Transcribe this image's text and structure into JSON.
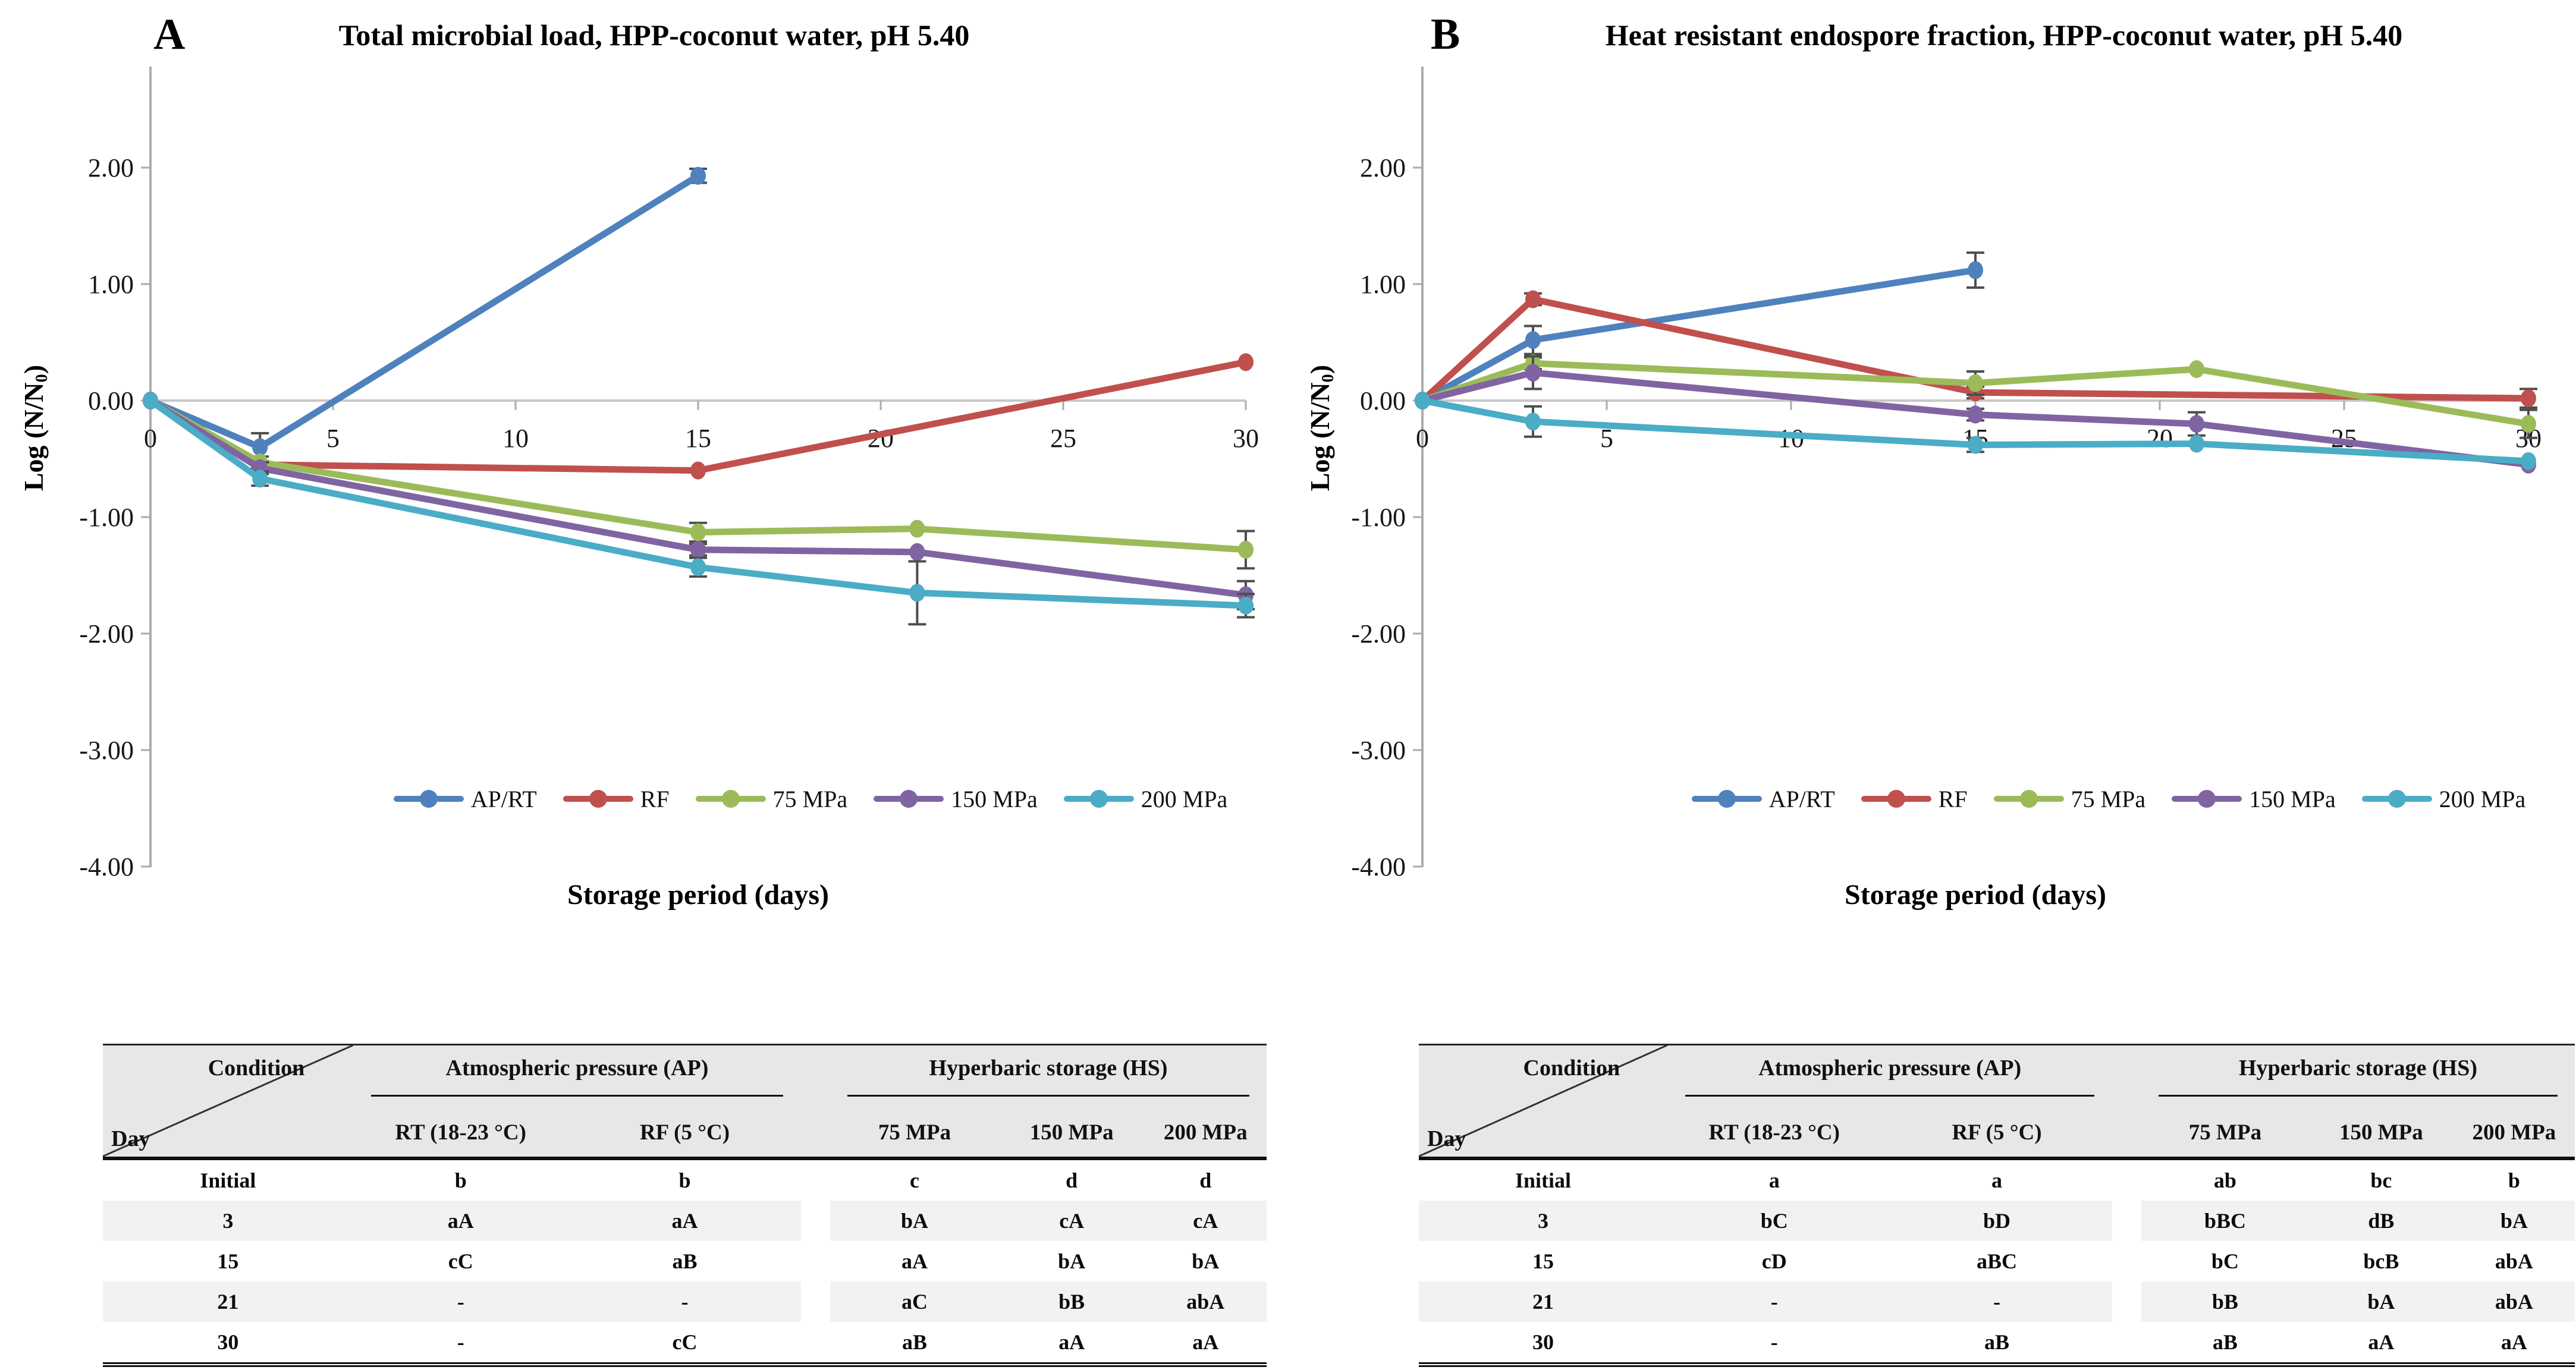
{
  "figure_colors": {
    "ap_rt_blue": "#4F81BD",
    "rf_red": "#C0504D",
    "mpa75_green": "#9BBB59",
    "mpa150_purple": "#8064A2",
    "mpa200_cyan": "#4BACC6",
    "axis_gray": "#ABABAB",
    "zero_line_gray": "#C8C8C8",
    "error_bar_gray": "#4D4D4D",
    "table_header_bg": "#e7e7e7",
    "table_stripe_bg": "#f2f2f2"
  },
  "chart_data": [
    {
      "type": "line",
      "panel_letter": "A",
      "title": "Total microbial load, HPP-coconut water, pH 5.40",
      "xlabel": "Storage period (days)",
      "ylabel": "Log (N/N0)",
      "ylabel_parts": {
        "prefix": "Log (N/N",
        "sub": "0",
        "suffix": ")"
      },
      "xlim": [
        0,
        30
      ],
      "ylim": [
        -4.0,
        2.9
      ],
      "x_ticks": [
        "0",
        "5",
        "10",
        "15",
        "20",
        "25",
        "30"
      ],
      "x_tick_values": [
        0,
        5,
        10,
        15,
        20,
        25,
        30
      ],
      "y_ticks": [
        "2.00",
        "1.00",
        "0.00",
        "-1.00",
        "-2.00",
        "-3.00",
        "-4.00"
      ],
      "y_tick_values": [
        2,
        1,
        0,
        -1,
        -2,
        -3,
        -4
      ],
      "grid": false,
      "legend_position": "bottom",
      "series": [
        {
          "name": "AP/RT",
          "color": "#4F81BD",
          "x": [
            0,
            3,
            15
          ],
          "y": [
            0,
            -0.4,
            1.93
          ],
          "err": [
            0,
            0.12,
            0.06
          ]
        },
        {
          "name": "RF",
          "color": "#C0504D",
          "x": [
            0,
            3,
            15,
            30
          ],
          "y": [
            0,
            -0.55,
            -0.6,
            0.33
          ],
          "err": [
            0,
            0,
            0,
            0
          ]
        },
        {
          "name": "75 MPa",
          "color": "#9BBB59",
          "x": [
            0,
            3,
            15,
            21,
            30
          ],
          "y": [
            0,
            -0.53,
            -1.13,
            -1.1,
            -1.28
          ],
          "err": [
            0,
            0.05,
            0.08,
            0,
            0.16
          ]
        },
        {
          "name": "150 MPa",
          "color": "#8064A2",
          "x": [
            0,
            3,
            15,
            21,
            30
          ],
          "y": [
            0,
            -0.58,
            -1.28,
            -1.3,
            -1.67
          ],
          "err": [
            0,
            0.05,
            0.05,
            0,
            0.12
          ]
        },
        {
          "name": "200 MPa",
          "color": "#4BACC6",
          "x": [
            0,
            3,
            15,
            21,
            30
          ],
          "y": [
            0,
            -0.67,
            -1.43,
            -1.65,
            -1.76
          ],
          "err": [
            0,
            0.06,
            0.08,
            0.27,
            0.1
          ]
        }
      ]
    },
    {
      "type": "line",
      "panel_letter": "B",
      "title": "Heat resistant endospore fraction, HPP-coconut water, pH 5.40",
      "xlabel": "Storage period (days)",
      "ylabel": "Log (N/N0)",
      "ylabel_parts": {
        "prefix": "Log (N/N",
        "sub": "0",
        "suffix": ")"
      },
      "xlim": [
        0,
        30
      ],
      "ylim": [
        -4.0,
        2.9
      ],
      "x_ticks": [
        "0",
        "5",
        "10",
        "15",
        "20",
        "25",
        "30"
      ],
      "x_tick_values": [
        0,
        5,
        10,
        15,
        20,
        25,
        30
      ],
      "y_ticks": [
        "2.00",
        "1.00",
        "0.00",
        "-1.00",
        "-2.00",
        "-3.00",
        "-4.00"
      ],
      "y_tick_values": [
        2,
        1,
        0,
        -1,
        -2,
        -3,
        -4
      ],
      "grid": false,
      "legend_position": "bottom",
      "series": [
        {
          "name": "AP/RT",
          "color": "#4F81BD",
          "x": [
            0,
            3,
            15
          ],
          "y": [
            0,
            0.52,
            1.12
          ],
          "err": [
            0,
            0.12,
            0.15
          ]
        },
        {
          "name": "RF",
          "color": "#C0504D",
          "x": [
            0,
            3,
            15,
            30
          ],
          "y": [
            0,
            0.87,
            0.07,
            0.02
          ],
          "err": [
            0,
            0.05,
            0.05,
            0.08
          ]
        },
        {
          "name": "75 MPa",
          "color": "#9BBB59",
          "x": [
            0,
            3,
            15,
            21,
            30
          ],
          "y": [
            0,
            0.32,
            0.15,
            0.27,
            -0.2
          ],
          "err": [
            0,
            0.05,
            0.1,
            0,
            0.12
          ]
        },
        {
          "name": "150 MPa",
          "color": "#8064A2",
          "x": [
            0,
            3,
            15,
            21,
            30
          ],
          "y": [
            0,
            0.24,
            -0.12,
            -0.2,
            -0.55
          ],
          "err": [
            0,
            0.14,
            0.05,
            0.1,
            0
          ]
        },
        {
          "name": "200 MPa",
          "color": "#4BACC6",
          "x": [
            0,
            3,
            15,
            21,
            30
          ],
          "y": [
            0,
            -0.18,
            -0.38,
            -0.37,
            -0.52
          ],
          "err": [
            0,
            0.13,
            0.06,
            0,
            0
          ]
        }
      ]
    }
  ],
  "tables": [
    {
      "corner": {
        "top": "Condition",
        "bottom": "Day"
      },
      "groups": [
        {
          "label": "Atmospheric pressure (AP)",
          "columns": 2
        },
        {
          "label": "Hyperbaric storage (HS)",
          "columns": 3
        }
      ],
      "columns": [
        "RT (18-23 °C)",
        "RF (5 °C)",
        "75 MPa",
        "150 MPa",
        "200 MPa"
      ],
      "rows": [
        {
          "day": "Initial",
          "values": [
            "b",
            "b",
            "c",
            "d",
            "d"
          ],
          "striped": false
        },
        {
          "day": "3",
          "values": [
            "aA",
            "aA",
            "bA",
            "cA",
            "cA"
          ],
          "striped": true
        },
        {
          "day": "15",
          "values": [
            "cC",
            "aB",
            "aA",
            "bA",
            "bA"
          ],
          "striped": false
        },
        {
          "day": "21",
          "values": [
            "-",
            "-",
            "aC",
            "bB",
            "abA"
          ],
          "striped": true
        },
        {
          "day": "30",
          "values": [
            "-",
            "cC",
            "aB",
            "aA",
            "aA"
          ],
          "striped": false
        }
      ]
    },
    {
      "corner": {
        "top": "Condition",
        "bottom": "Day"
      },
      "groups": [
        {
          "label": "Atmospheric pressure (AP)",
          "columns": 2
        },
        {
          "label": "Hyperbaric storage (HS)",
          "columns": 3
        }
      ],
      "columns": [
        "RT (18-23 °C)",
        "RF (5 °C)",
        "75 MPa",
        "150 MPa",
        "200 MPa"
      ],
      "rows": [
        {
          "day": "Initial",
          "values": [
            "a",
            "a",
            "ab",
            "bc",
            "b"
          ],
          "striped": false
        },
        {
          "day": "3",
          "values": [
            "bC",
            "bD",
            "bBC",
            "dB",
            "bA"
          ],
          "striped": true
        },
        {
          "day": "15",
          "values": [
            "cD",
            "aBC",
            "bC",
            "bcB",
            "abA"
          ],
          "striped": false
        },
        {
          "day": "21",
          "values": [
            "-",
            "-",
            "bB",
            "bA",
            "abA"
          ],
          "striped": true
        },
        {
          "day": "30",
          "values": [
            "-",
            "aB",
            "aB",
            "aA",
            "aA"
          ],
          "striped": false
        }
      ]
    }
  ]
}
